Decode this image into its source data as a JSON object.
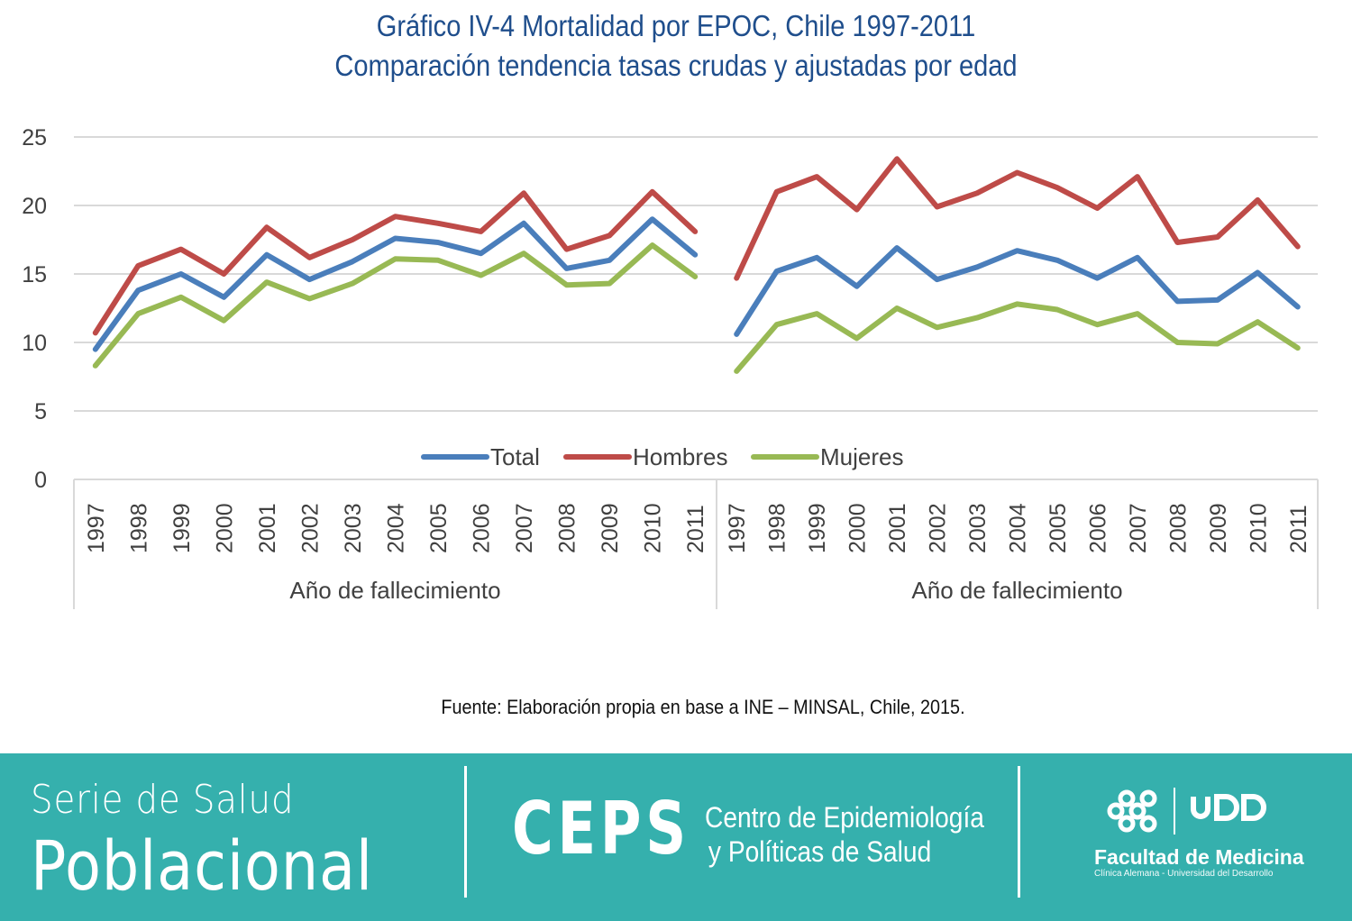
{
  "chart_data": [
    {
      "type": "line",
      "title": "Gráfico IV-4 Mortalidad por EPOC, Chile 1997-2011",
      "subtitle": "Comparación tendencia tasas crudas y ajustadas por edad",
      "xlabel": "Año de fallecimiento",
      "ylabel": "",
      "ylim": [
        0,
        25
      ],
      "yticks": [
        "0",
        "5",
        "10",
        "15",
        "20",
        "25"
      ],
      "grid": true,
      "categories": [
        "1997",
        "1998",
        "1999",
        "2000",
        "2001",
        "2002",
        "2003",
        "2004",
        "2005",
        "2006",
        "2007",
        "2008",
        "2009",
        "2010",
        "2011"
      ],
      "series": [
        {
          "name": "Total",
          "color": "#4a7ebb",
          "values": [
            9.5,
            13.8,
            15.0,
            13.3,
            16.4,
            14.6,
            15.9,
            17.6,
            17.3,
            16.5,
            18.7,
            15.4,
            16.0,
            19.0,
            16.4
          ]
        },
        {
          "name": "Hombres",
          "color": "#be4b48",
          "values": [
            10.7,
            15.6,
            16.8,
            15.0,
            18.4,
            16.2,
            17.5,
            19.2,
            18.7,
            18.1,
            20.9,
            16.8,
            17.8,
            21.0,
            18.1
          ]
        },
        {
          "name": "Mujeres",
          "color": "#98b954",
          "values": [
            8.3,
            12.1,
            13.3,
            11.6,
            14.4,
            13.2,
            14.3,
            16.1,
            16.0,
            14.9,
            16.5,
            14.2,
            14.3,
            17.1,
            14.8
          ]
        }
      ]
    },
    {
      "type": "line",
      "xlabel": "Año de fallecimiento",
      "ylabel": "",
      "ylim": [
        0,
        25
      ],
      "grid": true,
      "categories": [
        "1997",
        "1998",
        "1999",
        "2000",
        "2001",
        "2002",
        "2003",
        "2004",
        "2005",
        "2006",
        "2007",
        "2008",
        "2009",
        "2010",
        "2011"
      ],
      "series": [
        {
          "name": "Total",
          "color": "#4a7ebb",
          "values": [
            10.6,
            15.2,
            16.2,
            14.1,
            16.9,
            14.6,
            15.5,
            16.7,
            16.0,
            14.7,
            16.2,
            13.0,
            13.1,
            15.1,
            12.6
          ]
        },
        {
          "name": "Hombres",
          "color": "#be4b48",
          "values": [
            14.7,
            21.0,
            22.1,
            19.7,
            23.4,
            19.9,
            20.9,
            22.4,
            21.3,
            19.8,
            22.1,
            17.3,
            17.7,
            20.4,
            17.0
          ]
        },
        {
          "name": "Mujeres",
          "color": "#98b954",
          "values": [
            7.9,
            11.3,
            12.1,
            10.3,
            12.5,
            11.1,
            11.8,
            12.8,
            12.4,
            11.3,
            12.1,
            10.0,
            9.9,
            11.5,
            9.6
          ]
        }
      ]
    }
  ],
  "legend": {
    "position": "bottom-center",
    "items": [
      {
        "label": "Total",
        "color": "#4a7ebb"
      },
      {
        "label": "Hombres",
        "color": "#be4b48"
      },
      {
        "label": "Mujeres",
        "color": "#98b954"
      }
    ]
  },
  "source": "Fuente: Elaboración propia en base a INE – MINSAL, Chile, 2015.",
  "footer": {
    "background": "#35b0ad",
    "serie_line1": "Serie de Salud",
    "serie_line2": "Poblacional",
    "ceps": "CEPS",
    "centro_line1": "Centro de Epidemiología",
    "centro_line2": "y Políticas de Salud",
    "udd_logo": "UDD",
    "facultad": "Facultad de Medicina",
    "facultad_sub": "Clínica Alemana - Universidad del Desarrollo"
  }
}
